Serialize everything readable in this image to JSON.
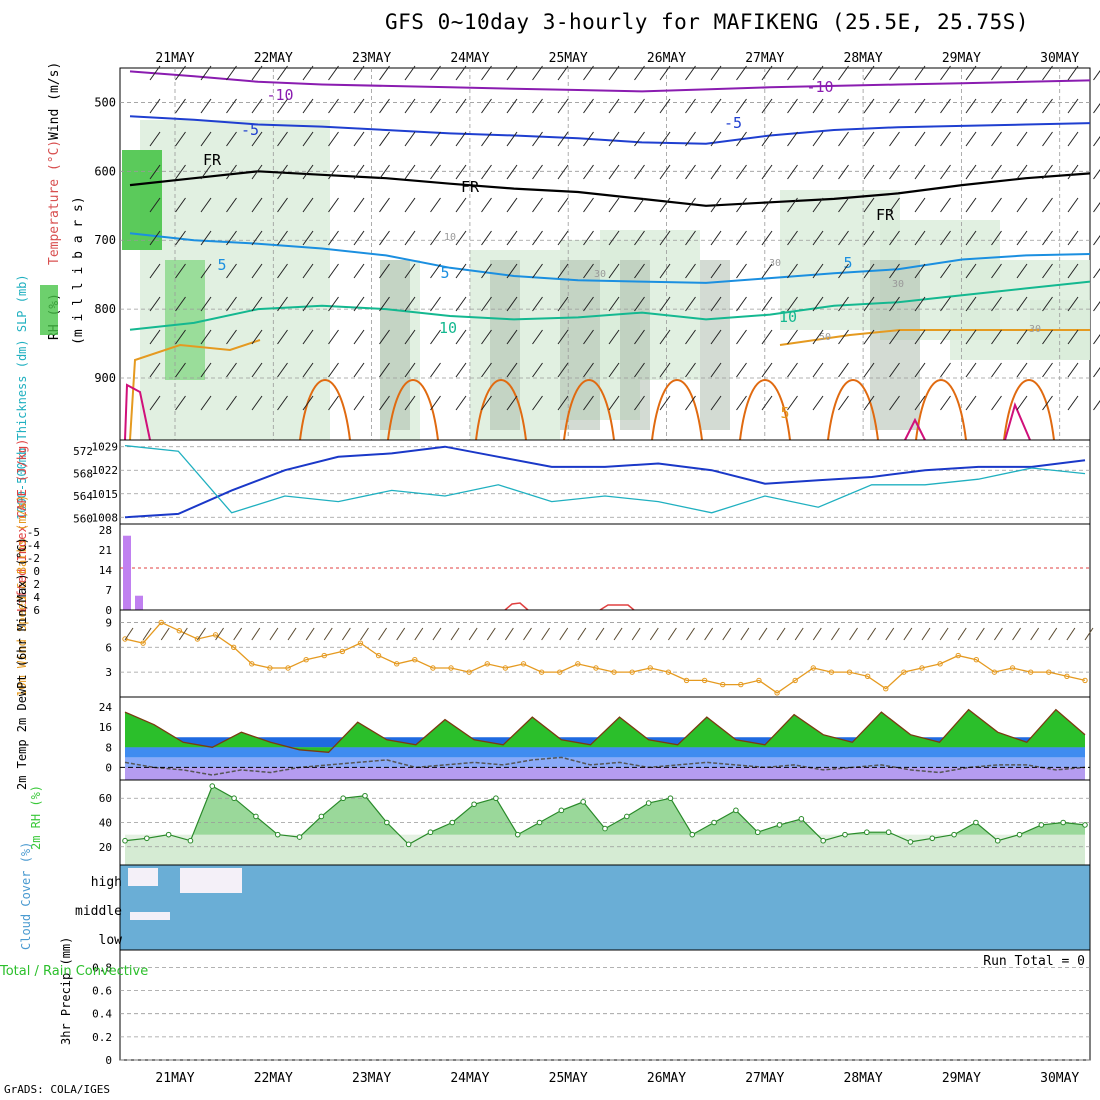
{
  "title": "GFS 0~10day 3-hourly for MAFIKENG (25.5E, 25.75S)",
  "footer": "GrADS: COLA/IGES",
  "colors": {
    "purple": "#8a1cb0",
    "blue": "#1f3fd0",
    "lightblue": "#1b8fe0",
    "teal": "#14b890",
    "orange": "#e59a20",
    "darkorange": "#e06a10",
    "magenta": "#d0107a",
    "cyan": "#20b0c0",
    "navy": "#1a38c8",
    "rhgreen": "#38c838",
    "cloud": "#6aaed6"
  },
  "chart_data": [
    {
      "type": "line",
      "panel": "upper-air",
      "x_tick_labels_top": [
        "21MAY",
        "22MAY",
        "23MAY",
        "24MAY",
        "25MAY",
        "26MAY",
        "27MAY",
        "28MAY",
        "29MAY",
        "30MAY"
      ],
      "x_tick_labels_bottom": [
        "21MAY",
        "22MAY",
        "23MAY",
        "24MAY",
        "25MAY",
        "26MAY",
        "27MAY",
        "28MAY",
        "29MAY",
        "30MAY"
      ],
      "ylabel_parts": [
        "Wind (m/s)",
        "Temperature (°C)",
        "RH (%)",
        "(m i l l i b a r s)"
      ],
      "y_ticks": [
        "500",
        "600",
        "700",
        "800",
        "900"
      ],
      "contour_labels": [
        "-10",
        "-10",
        "-5",
        "-5",
        "FR",
        "FR",
        "FR",
        "5",
        "5",
        "5",
        "10",
        "10",
        "5",
        "10",
        "30",
        "30",
        "30",
        "50",
        "30"
      ],
      "series": [
        {
          "name": "-10",
          "values": [
            455,
            462,
            470,
            474,
            476,
            478,
            480,
            482,
            484,
            481,
            478,
            476,
            474,
            472,
            470,
            468
          ]
        },
        {
          "name": "-5",
          "values": [
            520,
            525,
            532,
            535,
            540,
            545,
            548,
            552,
            558,
            560,
            548,
            540,
            536,
            534,
            532,
            530
          ]
        },
        {
          "name": "FR",
          "values": [
            620,
            610,
            600,
            605,
            610,
            618,
            625,
            630,
            640,
            650,
            645,
            640,
            632,
            620,
            610,
            603
          ]
        },
        {
          "name": "5",
          "values": [
            690,
            700,
            705,
            712,
            722,
            740,
            752,
            758,
            760,
            762,
            755,
            748,
            742,
            728,
            722,
            720
          ]
        },
        {
          "name": "10",
          "values": [
            830,
            820,
            800,
            795,
            800,
            810,
            815,
            812,
            805,
            815,
            808,
            795,
            790,
            780,
            770,
            760
          ]
        }
      ]
    },
    {
      "type": "line",
      "panel": "sea-level-pressure-thickness",
      "ylabel": "1000-500mb Thickness (dm) SLP (mb)",
      "y_ticks_left": [
        "572",
        "568",
        "564",
        "560"
      ],
      "y_ticks_right": [
        "1029",
        "1022",
        "1015",
        "1008"
      ],
      "series": [
        {
          "name": "SLP",
          "values": [
            1008,
            1009,
            1016,
            1022,
            1026,
            1027,
            1029,
            1026,
            1023,
            1023,
            1024,
            1022,
            1018,
            1019,
            1020,
            1022,
            1023,
            1023,
            1025
          ]
        },
        {
          "name": "Thickness",
          "values": [
            573,
            572,
            561,
            564,
            563,
            565,
            564,
            566,
            563,
            564,
            563,
            561,
            564,
            562,
            566,
            566,
            567,
            569,
            568
          ]
        }
      ]
    },
    {
      "type": "bar",
      "panel": "cape-lifted-index",
      "ylabel": "Lifted Index CAPE (J/kg)",
      "y_ticks_left": [
        "-5",
        "-4",
        "-2",
        "0",
        "2",
        "4",
        "6"
      ],
      "y_ticks_right": [
        "28",
        "21",
        "14",
        "7",
        "0"
      ],
      "values": [
        26,
        5
      ]
    },
    {
      "type": "line",
      "panel": "10m-wind",
      "ylabel": "10m Wind Speed & Barbs (m/s)",
      "y_ticks": [
        "9",
        "6",
        "3"
      ],
      "values": [
        7,
        6.5,
        9,
        8,
        7,
        7.5,
        6,
        4,
        3.5,
        3.5,
        4.5,
        5,
        5.5,
        6.5,
        5,
        4,
        4.5,
        3.5,
        3.5,
        3,
        4,
        3.5,
        4,
        3,
        3,
        4,
        3.5,
        3,
        3,
        3.5,
        3,
        2,
        2,
        1.5,
        1.5,
        2,
        0.5,
        2,
        3.5,
        3,
        3,
        2.5,
        1,
        3,
        3.5,
        4,
        5,
        4.5,
        3,
        3.5,
        3,
        3,
        2.5,
        2
      ]
    },
    {
      "type": "area",
      "panel": "2m-temperature",
      "ylabel": "2m Temp 2m DewPt (6hr Min/Max) (°C)",
      "y_ticks": [
        "24",
        "16",
        "8",
        "0"
      ],
      "series": [
        {
          "name": "Temp",
          "values": [
            22,
            17,
            10,
            8,
            14,
            10,
            7,
            6,
            18,
            11,
            9,
            19,
            11,
            9,
            20,
            11,
            9,
            20,
            11,
            9,
            20,
            11,
            9,
            21,
            13,
            10,
            22,
            13,
            10,
            23,
            14,
            10,
            23,
            13
          ]
        },
        {
          "name": "DewPt",
          "values": [
            2,
            0,
            -1,
            -3,
            -1,
            -2,
            0,
            1,
            2,
            3,
            0,
            1,
            2,
            1,
            3,
            4,
            1,
            2,
            0,
            1,
            2,
            1,
            0,
            1,
            -1,
            0,
            1,
            -1,
            -2,
            0,
            1,
            1,
            -1,
            0
          ]
        }
      ]
    },
    {
      "type": "area",
      "panel": "2m-rh",
      "ylabel": "2m RH (%)",
      "y_ticks": [
        "60",
        "40",
        "20"
      ],
      "values": [
        25,
        27,
        30,
        25,
        70,
        60,
        45,
        30,
        28,
        45,
        60,
        62,
        40,
        22,
        32,
        40,
        55,
        60,
        30,
        40,
        50,
        57,
        35,
        45,
        56,
        60,
        30,
        40,
        50,
        32,
        38,
        43,
        25,
        30,
        32,
        32,
        24,
        27,
        30,
        40,
        25,
        30,
        38,
        40,
        38
      ]
    },
    {
      "type": "heatmap",
      "panel": "cloud-cover",
      "ylabel": "Cloud Cover (%)",
      "y_ticks": [
        "high",
        "middle",
        "low"
      ]
    },
    {
      "type": "bar",
      "panel": "3hr-precip",
      "ylabel": "3hr Precip (mm)",
      "ylabel_left": "Total / Rain Convective",
      "y_ticks": [
        "0.8",
        "0.6",
        "0.4",
        "0.2",
        "0"
      ],
      "run_total": "Run Total = 0",
      "values": []
    }
  ]
}
